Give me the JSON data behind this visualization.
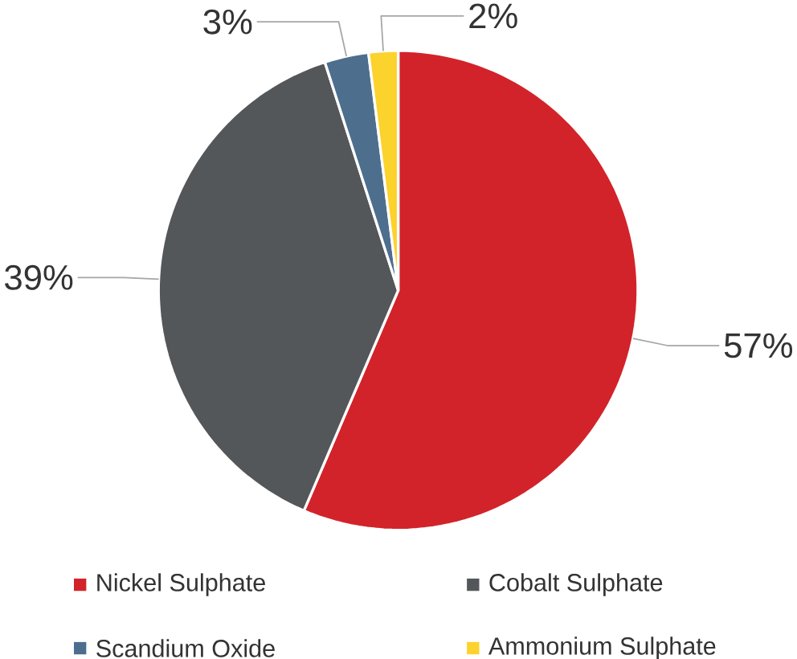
{
  "chart_data": {
    "type": "pie",
    "categories": [
      "Nickel Sulphate",
      "Cobalt Sulphate",
      "Scandium Oxide",
      "Ammonium Sulphate"
    ],
    "values": [
      57,
      39,
      3,
      2
    ],
    "colors": [
      "#d2232a",
      "#54575a",
      "#4e6e8e",
      "#fcd22d"
    ],
    "value_labels": [
      "57%",
      "39%",
      "3%",
      "2%"
    ],
    "legend": "bottom"
  }
}
